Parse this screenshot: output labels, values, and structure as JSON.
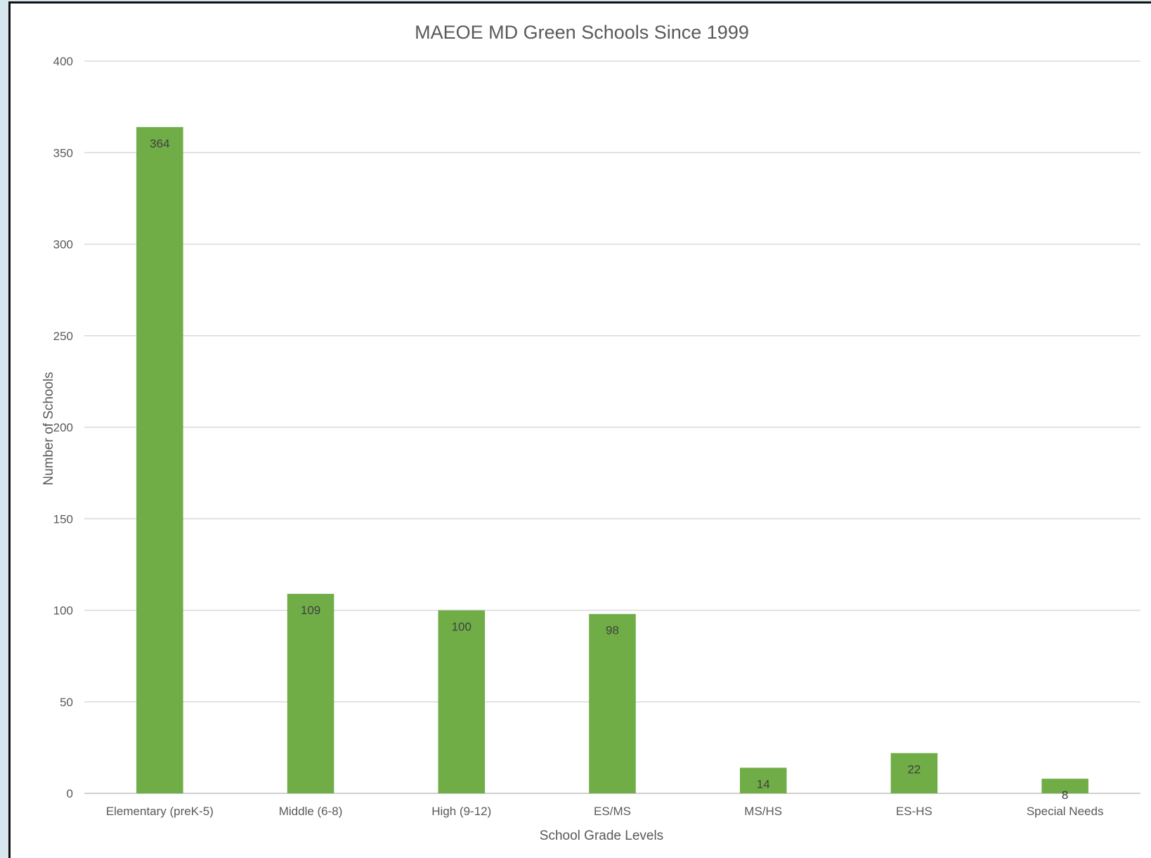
{
  "chart_data": {
    "type": "bar",
    "title": "MAEOE MD Green Schools Since 1999",
    "xlabel": "School Grade Levels",
    "ylabel": "Number of Schools",
    "categories": [
      "Elementary (preK-5)",
      "Middle (6-8)",
      "High (9-12)",
      "ES/MS",
      "MS/HS",
      "ES-HS",
      "Special Needs"
    ],
    "values": [
      364,
      109,
      100,
      98,
      14,
      22,
      8
    ],
    "ylim": [
      0,
      400
    ],
    "yticks": [
      0,
      50,
      100,
      150,
      200,
      250,
      300,
      350,
      400
    ],
    "grid": true,
    "legend": "none",
    "data_labels": true,
    "bar_color": "#70ad47"
  }
}
